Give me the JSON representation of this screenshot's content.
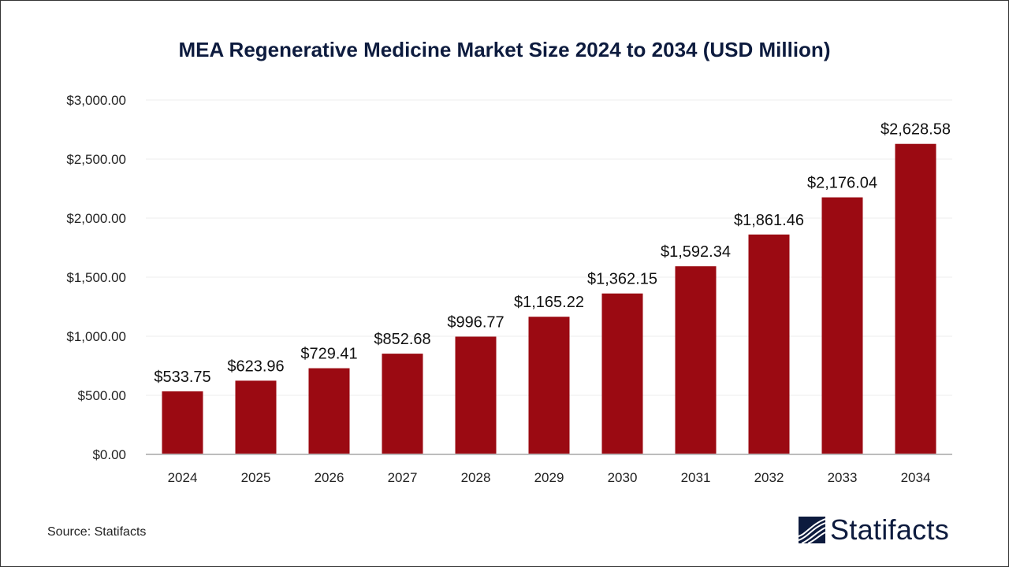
{
  "chart_data": {
    "type": "bar",
    "title": "MEA Regenerative Medicine Market Size 2024 to 2034 (USD Million)",
    "categories": [
      "2024",
      "2025",
      "2026",
      "2027",
      "2028",
      "2029",
      "2030",
      "2031",
      "2032",
      "2033",
      "2034"
    ],
    "values": [
      533.75,
      623.96,
      729.41,
      852.68,
      996.77,
      1165.22,
      1362.15,
      1592.34,
      1861.46,
      2176.04,
      2628.58
    ],
    "data_labels": [
      "$533.75",
      "$623.96",
      "$729.41",
      "$852.68",
      "$996.77",
      "$1,165.22",
      "$1,362.15",
      "$1,592.34",
      "$1,861.46",
      "$2,176.04",
      "$2,628.58"
    ],
    "y_ticks": [
      0,
      500,
      1000,
      1500,
      2000,
      2500,
      3000
    ],
    "y_tick_labels": [
      "$0.00",
      "$500.00",
      "$1,000.00",
      "$1,500.00",
      "$2,000.00",
      "$2,500.00",
      "$3,000.00"
    ],
    "ylim": [
      0,
      3000
    ],
    "xlabel": "",
    "ylabel": "",
    "grid": true,
    "legend": "none",
    "bar_color": "#9b0a12"
  },
  "source": "Source: Statifacts",
  "logo": {
    "text": "Statifacts",
    "color": "#0d1b3e"
  }
}
